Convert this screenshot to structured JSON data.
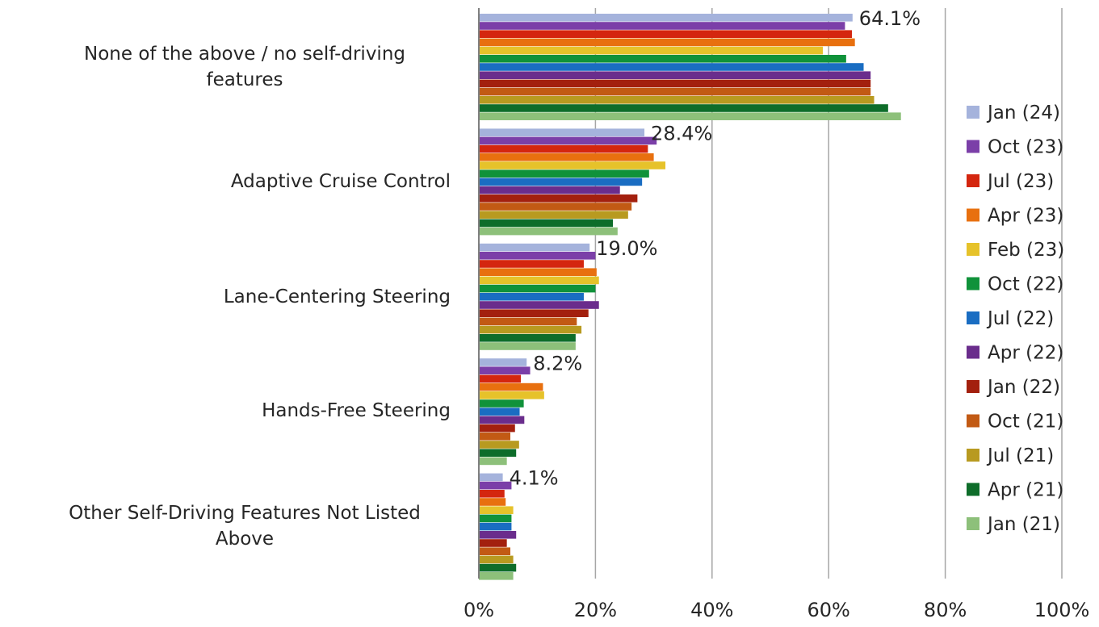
{
  "chart_data": {
    "type": "bar",
    "orientation": "horizontal",
    "categories": [
      "None of the above / no self-driving features",
      "Adaptive Cruise Control",
      "Lane-Centering Steering",
      "Hands-Free Steering",
      "Other Self-Driving Features Not Listed Above"
    ],
    "category_lines": [
      [
        "None of the above / no self-driving",
        "features"
      ],
      [
        "Adaptive Cruise Control"
      ],
      [
        "Lane-Centering Steering"
      ],
      [
        "Hands-Free Steering"
      ],
      [
        "Other Self-Driving Features Not Listed",
        "Above"
      ]
    ],
    "series": [
      {
        "name": "Jan (24)",
        "color": "#a5b3dc",
        "values": [
          64.1,
          28.4,
          19.0,
          8.2,
          4.1
        ]
      },
      {
        "name": "Oct (23)",
        "color": "#7b3fa8",
        "values": [
          62.8,
          30.5,
          20.0,
          8.8,
          5.6
        ]
      },
      {
        "name": "Jul (23)",
        "color": "#d4260f",
        "values": [
          64.0,
          29.0,
          18.0,
          7.2,
          4.4
        ]
      },
      {
        "name": "Apr (23)",
        "color": "#e8700f",
        "values": [
          64.5,
          30.0,
          20.2,
          11.0,
          4.6
        ]
      },
      {
        "name": "Feb (23)",
        "color": "#e6c22a",
        "values": [
          59.0,
          32.0,
          20.6,
          11.2,
          5.9
        ]
      },
      {
        "name": "Oct (22)",
        "color": "#10923a",
        "values": [
          63.0,
          29.2,
          20.0,
          7.7,
          5.6
        ]
      },
      {
        "name": "Jul (22)",
        "color": "#1a6dc2",
        "values": [
          66.0,
          28.0,
          18.0,
          7.0,
          5.6
        ]
      },
      {
        "name": "Apr (22)",
        "color": "#6a2d8c",
        "values": [
          67.2,
          24.2,
          20.6,
          7.8,
          6.4
        ]
      },
      {
        "name": "Jan (22)",
        "color": "#a3200e",
        "values": [
          67.2,
          27.2,
          18.8,
          6.2,
          4.8
        ]
      },
      {
        "name": "Oct (21)",
        "color": "#c25a14",
        "values": [
          67.2,
          26.2,
          16.8,
          5.4,
          5.4
        ]
      },
      {
        "name": "Jul (21)",
        "color": "#b89a20",
        "values": [
          67.8,
          25.6,
          17.6,
          6.9,
          5.9
        ]
      },
      {
        "name": "Apr (21)",
        "color": "#0e6d2a",
        "values": [
          70.2,
          23.0,
          16.6,
          6.4,
          6.4
        ]
      },
      {
        "name": "Jan (21)",
        "color": "#8dc07a",
        "values": [
          72.4,
          23.8,
          16.6,
          4.8,
          5.9
        ]
      }
    ],
    "data_labels": [
      "64.1%",
      "28.4%",
      "19.0%",
      "8.2%",
      "4.1%"
    ],
    "x_ticks": [
      "0%",
      "20%",
      "40%",
      "60%",
      "80%",
      "100%"
    ],
    "xlim": [
      0,
      100
    ],
    "grid": true,
    "legend_position": "right",
    "title": "",
    "xlabel": "",
    "ylabel": ""
  }
}
